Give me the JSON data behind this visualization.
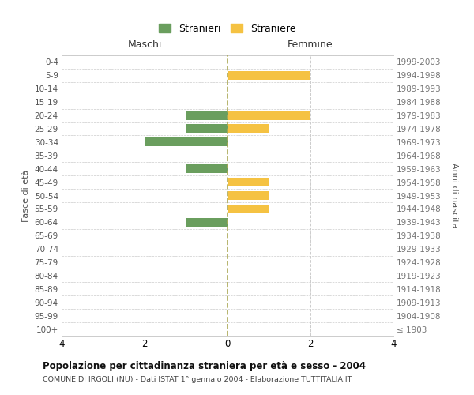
{
  "age_groups": [
    "100+",
    "95-99",
    "90-94",
    "85-89",
    "80-84",
    "75-79",
    "70-74",
    "65-69",
    "60-64",
    "55-59",
    "50-54",
    "45-49",
    "40-44",
    "35-39",
    "30-34",
    "25-29",
    "20-24",
    "15-19",
    "10-14",
    "5-9",
    "0-4"
  ],
  "birth_years": [
    "≤ 1903",
    "1904-1908",
    "1909-1913",
    "1914-1918",
    "1919-1923",
    "1924-1928",
    "1929-1933",
    "1934-1938",
    "1939-1943",
    "1944-1948",
    "1949-1953",
    "1954-1958",
    "1959-1963",
    "1964-1968",
    "1969-1973",
    "1974-1978",
    "1979-1983",
    "1984-1988",
    "1989-1993",
    "1994-1998",
    "1999-2003"
  ],
  "maschi": [
    0,
    0,
    0,
    0,
    0,
    0,
    0,
    0,
    -1,
    0,
    0,
    0,
    -1,
    0,
    -2,
    -1,
    -1,
    0,
    0,
    0,
    0
  ],
  "femmine": [
    0,
    0,
    0,
    0,
    0,
    0,
    0,
    0,
    0,
    1,
    1,
    1,
    0,
    0,
    0,
    1,
    2,
    0,
    0,
    2,
    0
  ],
  "color_maschi": "#6a9e5e",
  "color_femmine": "#f5c242",
  "title": "Popolazione per cittadinanza straniera per età e sesso - 2004",
  "subtitle": "COMUNE DI IRGOLI (NU) - Dati ISTAT 1° gennaio 2004 - Elaborazione TUTTITALIA.IT",
  "xlabel_left": "Maschi",
  "xlabel_right": "Femmine",
  "ylabel_left": "Fasce di età",
  "ylabel_right": "Anni di nascita",
  "xlim": [
    -4,
    4
  ],
  "xticks": [
    -4,
    -2,
    0,
    2,
    4
  ],
  "xticklabels": [
    "4",
    "2",
    "0",
    "2",
    "4"
  ],
  "legend_maschi": "Stranieri",
  "legend_femmine": "Straniere",
  "bg_color": "#ffffff",
  "grid_color": "#cccccc",
  "bar_height": 0.65
}
